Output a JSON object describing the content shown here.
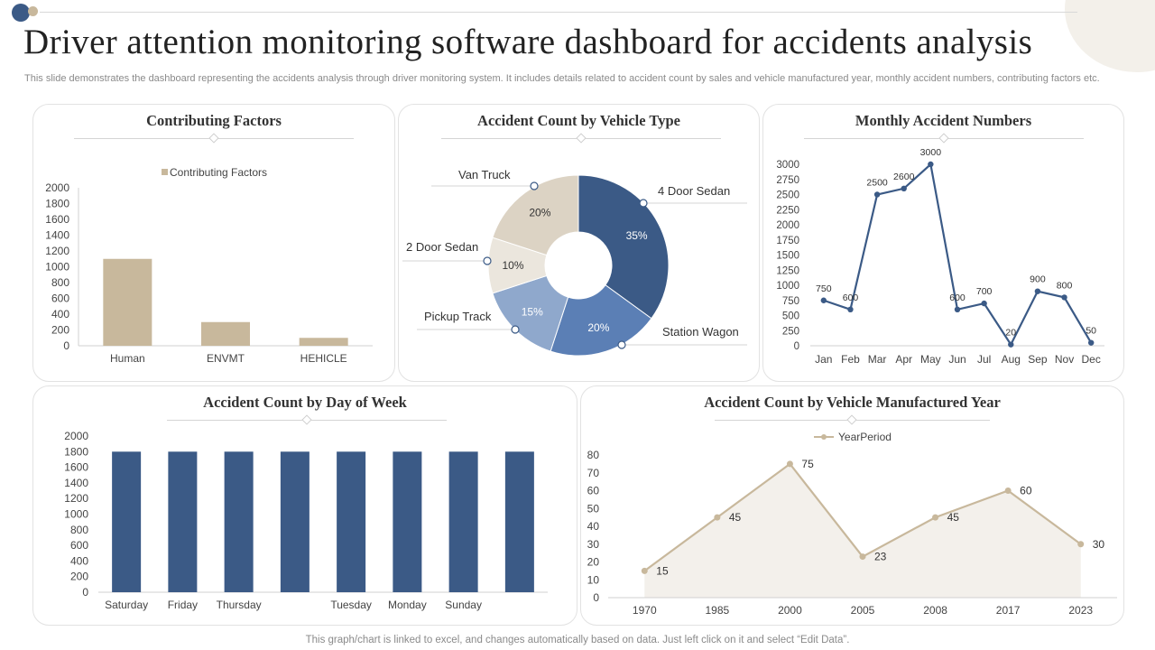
{
  "header": {
    "title": "Driver attention monitoring software dashboard for accidents analysis",
    "subtitle": "This slide demonstrates the dashboard representing the accidents analysis through driver monitoring system. It includes details related to accident count by sales and vehicle manufactured year, monthly accident numbers, contributing factors etc."
  },
  "footer": {
    "text": "This graph/chart is linked to excel,  and changes automatically based on data. Just left click on it and select “Edit Data”."
  },
  "colors": {
    "navy": "#3b5a86",
    "tan": "#c8b89c",
    "blue_mid": "#5b7fb5",
    "blue_light": "#8fa8cc",
    "beige": "#e0d8cb",
    "area_fill": "#f3f0eb"
  },
  "chart_data": [
    {
      "id": "contributing",
      "type": "bar",
      "title": "Contributing Factors",
      "legend": "Contributing Factors",
      "categories": [
        "Human",
        "ENVMT",
        "HEHICLE"
      ],
      "values": [
        1100,
        300,
        100
      ],
      "yticks": [
        "2000",
        "1800",
        "1600",
        "1400",
        "1200",
        "1000",
        "800",
        "600",
        "400",
        "200",
        "0"
      ],
      "ylim": [
        0,
        2000
      ]
    },
    {
      "id": "vehicle_type",
      "type": "pie",
      "title": "Accident  Count by Vehicle Type",
      "slices": [
        {
          "label": "4 Door Sedan",
          "value": 35,
          "text": "35%"
        },
        {
          "label": "Station Wagon",
          "value": 20,
          "text": "20%"
        },
        {
          "label": "Pickup Track",
          "value": 15,
          "text": "15%"
        },
        {
          "label": "2 Door Sedan",
          "value": 10,
          "text": "10%"
        },
        {
          "label": "Van Truck",
          "value": 20,
          "text": "20%"
        }
      ]
    },
    {
      "id": "monthly",
      "type": "line",
      "title": "Monthly Accident Numbers",
      "categories": [
        "Jan",
        "Feb",
        "Mar",
        "Apr",
        "May",
        "Jun",
        "Jul",
        "Aug",
        "Sep",
        "Nov",
        "Dec"
      ],
      "values": [
        750,
        600,
        2500,
        2600,
        3000,
        600,
        700,
        20,
        900,
        800,
        50
      ],
      "labels": [
        "750",
        "600",
        "2500",
        "2600",
        "3000",
        "600",
        "700",
        "20",
        "900",
        "800",
        "50"
      ],
      "yticks": [
        "3000",
        "2750",
        "2500",
        "2250",
        "2000",
        "1750",
        "1500",
        "1250",
        "1000",
        "750",
        "500",
        "250",
        "0"
      ],
      "ylim": [
        0,
        3000
      ]
    },
    {
      "id": "day_of_week",
      "type": "bar",
      "title": "Accident Count by Day of Week",
      "categories": [
        "Saturday",
        "Friday",
        "Thursday",
        "",
        "Tuesday",
        "Monday",
        "Sunday",
        ""
      ],
      "values": [
        1800,
        1800,
        1800,
        1800,
        1800,
        1800,
        1800,
        1800
      ],
      "yticks": [
        "2000",
        "1800",
        "1600",
        "1400",
        "1200",
        "1000",
        "800",
        "600",
        "400",
        "200",
        "0"
      ],
      "ylim": [
        0,
        2000
      ]
    },
    {
      "id": "manufactured_year",
      "type": "area",
      "title": "Accident Count by Vehicle Manufactured Year",
      "legend": "YearPeriod",
      "categories": [
        "1970",
        "1985",
        "2000",
        "2005",
        "2008",
        "2017",
        "2023"
      ],
      "values": [
        15,
        45,
        75,
        23,
        45,
        60,
        30
      ],
      "labels": [
        "15",
        "45",
        "75",
        "23",
        "45",
        "60",
        "30"
      ],
      "yticks": [
        "80",
        "70",
        "60",
        "50",
        "40",
        "30",
        "20",
        "10",
        "0"
      ],
      "ylim": [
        0,
        80
      ]
    }
  ]
}
